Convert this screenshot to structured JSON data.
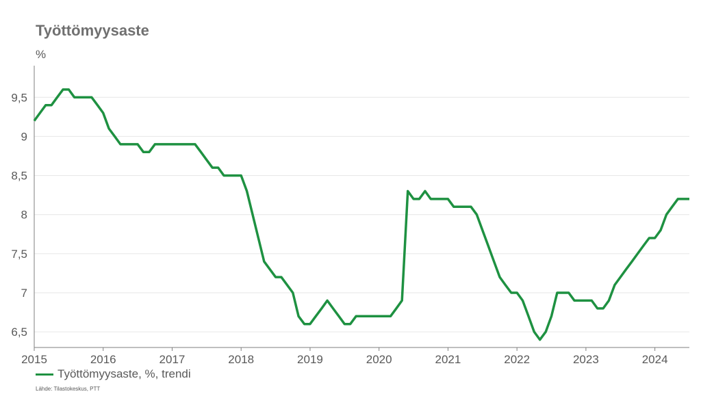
{
  "chart_data": {
    "type": "line",
    "title": "Työttömyysaste",
    "ylabel": "%",
    "xlabel": "",
    "xlim": [
      2015,
      2024.5
    ],
    "ylim": [
      6.3,
      9.8
    ],
    "x_ticks": [
      2015,
      2016,
      2017,
      2018,
      2019,
      2020,
      2021,
      2022,
      2023,
      2024
    ],
    "x_tick_labels": [
      "2015",
      "2016",
      "2017",
      "2018",
      "2019",
      "2020",
      "2021",
      "2022",
      "2023",
      "2024"
    ],
    "y_ticks": [
      6.5,
      7,
      7.5,
      8,
      8.5,
      9,
      9.5
    ],
    "y_tick_labels": [
      "6,5",
      "7",
      "7,5",
      "8",
      "8,5",
      "9",
      "9,5"
    ],
    "grid": "horizontal",
    "legend_position": "bottom-left",
    "series": [
      {
        "name": "Työttömyysaste, %, trendi",
        "color": "#1e9141",
        "x": [
          2015.0,
          2015.083,
          2015.167,
          2015.25,
          2015.333,
          2015.417,
          2015.5,
          2015.583,
          2015.667,
          2015.75,
          2015.833,
          2015.917,
          2016.0,
          2016.083,
          2016.167,
          2016.25,
          2016.333,
          2016.417,
          2016.5,
          2016.583,
          2016.667,
          2016.75,
          2016.833,
          2016.917,
          2017.0,
          2017.083,
          2017.167,
          2017.25,
          2017.333,
          2017.417,
          2017.5,
          2017.583,
          2017.667,
          2017.75,
          2017.833,
          2017.917,
          2018.0,
          2018.083,
          2018.167,
          2018.25,
          2018.333,
          2018.417,
          2018.5,
          2018.583,
          2018.667,
          2018.75,
          2018.833,
          2018.917,
          2019.0,
          2019.083,
          2019.167,
          2019.25,
          2019.333,
          2019.417,
          2019.5,
          2019.583,
          2019.667,
          2019.75,
          2019.833,
          2019.917,
          2020.0,
          2020.083,
          2020.167,
          2020.25,
          2020.333,
          2020.417,
          2020.5,
          2020.583,
          2020.667,
          2020.75,
          2020.833,
          2020.917,
          2021.0,
          2021.083,
          2021.167,
          2021.25,
          2021.333,
          2021.417,
          2021.5,
          2021.583,
          2021.667,
          2021.75,
          2021.833,
          2021.917,
          2022.0,
          2022.083,
          2022.167,
          2022.25,
          2022.333,
          2022.417,
          2022.5,
          2022.583,
          2022.667,
          2022.75,
          2022.833,
          2022.917,
          2023.0,
          2023.083,
          2023.167,
          2023.25,
          2023.333,
          2023.417,
          2023.5,
          2023.583,
          2023.667,
          2023.75,
          2023.833,
          2023.917,
          2024.0,
          2024.083,
          2024.167,
          2024.25,
          2024.333,
          2024.417,
          2024.5
        ],
        "values": [
          9.2,
          9.3,
          9.4,
          9.4,
          9.5,
          9.6,
          9.6,
          9.5,
          9.5,
          9.5,
          9.5,
          9.4,
          9.3,
          9.1,
          9.0,
          8.9,
          8.9,
          8.9,
          8.9,
          8.8,
          8.8,
          8.9,
          8.9,
          8.9,
          8.9,
          8.9,
          8.9,
          8.9,
          8.9,
          8.8,
          8.7,
          8.6,
          8.6,
          8.5,
          8.5,
          8.5,
          8.5,
          8.3,
          8.0,
          7.7,
          7.4,
          7.3,
          7.2,
          7.2,
          7.1,
          7.0,
          6.7,
          6.6,
          6.6,
          6.7,
          6.8,
          6.9,
          6.8,
          6.7,
          6.6,
          6.6,
          6.7,
          6.7,
          6.7,
          6.7,
          6.7,
          6.7,
          6.7,
          6.8,
          6.9,
          8.3,
          8.2,
          8.2,
          8.3,
          8.2,
          8.2,
          8.2,
          8.2,
          8.1,
          8.1,
          8.1,
          8.1,
          8.0,
          7.8,
          7.6,
          7.4,
          7.2,
          7.1,
          7.0,
          7.0,
          6.9,
          6.7,
          6.5,
          6.4,
          6.5,
          6.7,
          7.0,
          7.0,
          7.0,
          6.9,
          6.9,
          6.9,
          6.9,
          6.8,
          6.8,
          6.9,
          7.1,
          7.2,
          7.3,
          7.4,
          7.5,
          7.6,
          7.7,
          7.7,
          7.8,
          8.0,
          8.1,
          8.2,
          8.2,
          8.2
        ]
      }
    ]
  },
  "legend": {
    "label": "Työttömyysaste, %, trendi",
    "color": "#1e9141"
  },
  "source_note": "Lähde: Tilastokeskus, PTT"
}
